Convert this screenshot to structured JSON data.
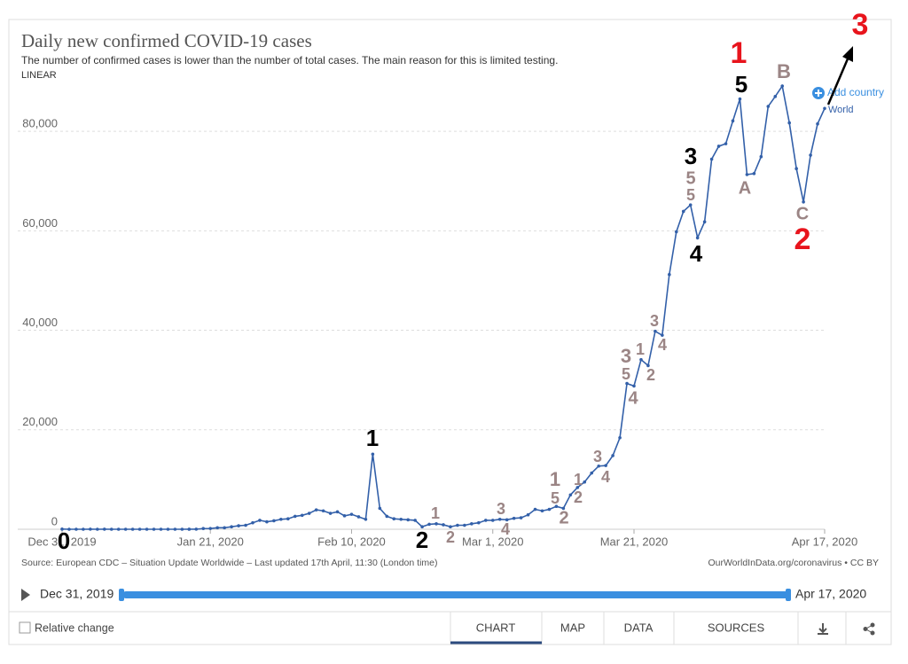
{
  "chart_data": {
    "type": "line",
    "title": "Daily new confirmed COVID-19 cases",
    "subtitle": "The number of confirmed cases is lower than the number of total cases. The main reason for this is limited testing.",
    "scale": "LINEAR",
    "categories": [
      "Dec 31, 2019",
      null,
      null,
      null,
      null,
      null,
      null,
      null,
      null,
      null,
      null,
      null,
      null,
      null,
      null,
      null,
      null,
      null,
      null,
      null,
      null,
      "Jan 21, 2020",
      null,
      null,
      null,
      null,
      null,
      null,
      null,
      null,
      null,
      null,
      null,
      null,
      null,
      null,
      null,
      null,
      null,
      null,
      null,
      "Feb 10, 2020",
      null,
      null,
      null,
      null,
      null,
      null,
      null,
      null,
      null,
      null,
      null,
      null,
      null,
      null,
      null,
      null,
      null,
      null,
      null,
      "Mar 1, 2020",
      null,
      null,
      null,
      null,
      null,
      null,
      null,
      null,
      null,
      null,
      null,
      null,
      null,
      null,
      null,
      null,
      null,
      null,
      null,
      "Mar 21, 2020",
      null,
      null,
      null,
      null,
      null,
      null,
      null,
      null,
      null,
      null,
      null,
      null,
      null,
      null,
      null,
      null,
      null,
      null,
      null,
      null,
      null,
      null,
      null,
      null,
      null,
      null,
      "Apr 17, 2020"
    ],
    "series": [
      {
        "name": "World",
        "color": "#3360a9",
        "values": [
          27,
          0,
          0,
          0,
          17,
          0,
          15,
          0,
          0,
          0,
          0,
          0,
          1,
          0,
          1,
          0,
          0,
          0,
          4,
          17,
          136,
          150,
          300,
          300,
          500,
          700,
          800,
          1300,
          1800,
          1500,
          1700,
          2000,
          2100,
          2600,
          2800,
          3200,
          3900,
          3700,
          3200,
          3500,
          2700,
          3000,
          2500,
          2000,
          15100,
          4200,
          2600,
          2100,
          2000,
          1900,
          1800,
          500,
          1000,
          1100,
          900,
          500,
          800,
          800,
          1100,
          1300,
          1800,
          1800,
          2000,
          1900,
          2200,
          2300,
          2900,
          4000,
          3700,
          4000,
          4600,
          4200,
          6900,
          8400,
          9500,
          11300,
          12700,
          12800,
          14800,
          18400,
          29300,
          28800,
          34100,
          32900,
          39800,
          39000,
          51200,
          59800,
          63900,
          65200,
          58600,
          61800,
          74400,
          77000,
          77500,
          82100,
          86500,
          71300,
          71500,
          74900,
          85000,
          87000,
          89100,
          81700,
          72500,
          65800,
          75200,
          81500,
          84600
        ]
      }
    ],
    "ylim": [
      0,
      90000
    ],
    "yticks": [
      0,
      {
        "value": 20000,
        "label": "20,000"
      },
      {
        "value": 40000,
        "label": "40,000"
      },
      {
        "value": 60000,
        "label": "60,000"
      },
      {
        "value": 80000,
        "label": "80,000"
      }
    ],
    "grid": true,
    "annotations": [
      {
        "text": "0",
        "color": "#000000"
      },
      {
        "text": "1",
        "color": "#000000"
      },
      {
        "text": "2",
        "color": "#000000"
      },
      {
        "text": "3",
        "color": "#000000"
      },
      {
        "text": "4",
        "color": "#000000"
      },
      {
        "text": "5",
        "color": "#000000"
      },
      {
        "text": "1",
        "color": "#e8141c"
      },
      {
        "text": "2",
        "color": "#e8141c"
      },
      {
        "text": "3",
        "color": "#e8141c"
      },
      {
        "text": "1",
        "color": "#9b8585"
      },
      {
        "text": "2",
        "color": "#9b8585"
      },
      {
        "text": "3",
        "color": "#9b8585"
      },
      {
        "text": "4",
        "color": "#9b8585"
      },
      {
        "text": "1",
        "color": "#9b8585"
      },
      {
        "text": "5",
        "color": "#9b8585"
      },
      {
        "text": "2",
        "color": "#9b8585"
      },
      {
        "text": "1",
        "color": "#9b8585"
      },
      {
        "text": "2",
        "color": "#9b8585"
      },
      {
        "text": "3",
        "color": "#9b8585"
      },
      {
        "text": "4",
        "color": "#9b8585"
      },
      {
        "text": "3",
        "color": "#9b8585"
      },
      {
        "text": "5",
        "color": "#9b8585"
      },
      {
        "text": "4",
        "color": "#9b8585"
      },
      {
        "text": "1",
        "color": "#9b8585"
      },
      {
        "text": "2",
        "color": "#9b8585"
      },
      {
        "text": "3",
        "color": "#9b8585"
      },
      {
        "text": "4",
        "color": "#9b8585"
      },
      {
        "text": "5",
        "color": "#9b8585"
      },
      {
        "text": "5",
        "color": "#9b8585"
      },
      {
        "text": "A",
        "color": "#9b8585"
      },
      {
        "text": "B",
        "color": "#9b8585"
      },
      {
        "text": "C",
        "color": "#9b8585"
      }
    ],
    "source": "Source: European CDC – Situation Update Worldwide – Last updated 17th April, 11:30 (London time)",
    "credit": "OurWorldInData.org/coronavirus • CC BY",
    "add_country": "Add country"
  },
  "controls": {
    "relative_change": "Relative change",
    "tabs": [
      "CHART",
      "MAP",
      "DATA",
      "SOURCES"
    ]
  }
}
